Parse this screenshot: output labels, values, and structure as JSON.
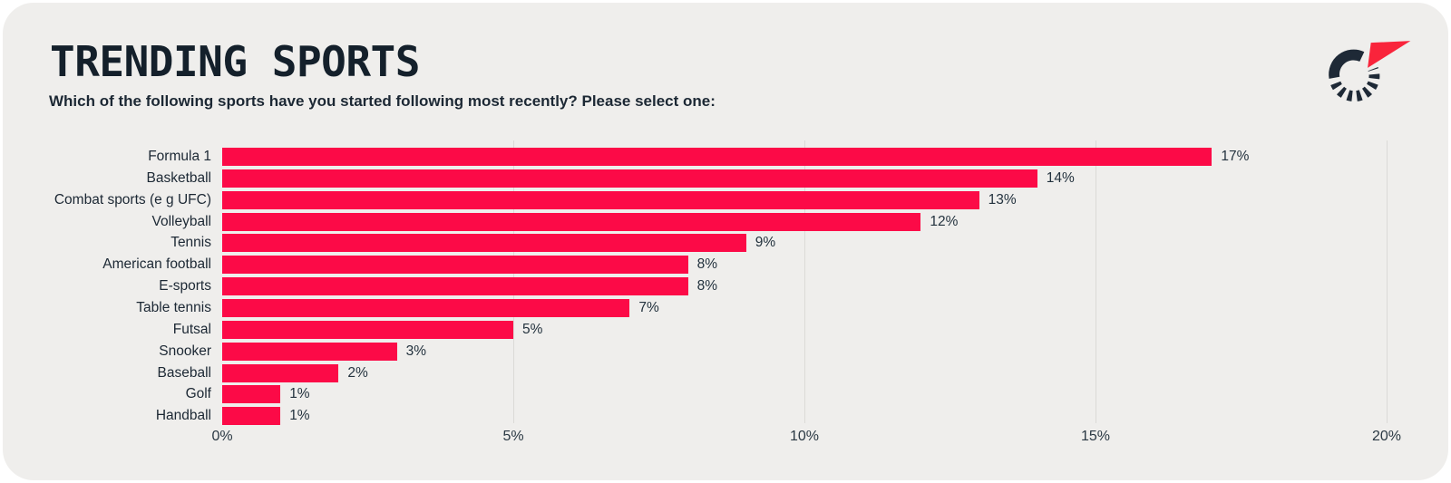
{
  "header": {
    "title": "TRENDING SPORTS",
    "subtitle": "Which of the following sports have you started following most recently? Please select one:"
  },
  "logo": {
    "ring_color": "#1e2936",
    "flag_color": "#f9243b"
  },
  "chart_data": {
    "type": "bar",
    "orientation": "horizontal",
    "title": "TRENDING SPORTS",
    "xlabel": "",
    "ylabel": "",
    "categories": [
      "Formula 1",
      "Basketball",
      "Combat sports (e g UFC)",
      "Volleyball",
      "Tennis",
      "American football",
      "E-sports",
      "Table tennis",
      "Futsal",
      "Snooker",
      "Baseball",
      "Golf",
      "Handball"
    ],
    "values": [
      17,
      14,
      13,
      12,
      9,
      8,
      8,
      7,
      5,
      3,
      2,
      1,
      1
    ],
    "value_labels": [
      "17%",
      "14%",
      "13%",
      "12%",
      "9%",
      "8%",
      "8%",
      "7%",
      "5%",
      "3%",
      "2%",
      "1%",
      "1%"
    ],
    "xlim": [
      0,
      20
    ],
    "x_ticks": [
      0,
      5,
      10,
      15,
      20
    ],
    "x_tick_labels": [
      "0%",
      "5%",
      "10%",
      "15%",
      "20%"
    ],
    "grid": true,
    "legend": false,
    "bar_color": "#fc0a47",
    "gridline_color": "#dbdad7",
    "text_color": "#1c2834",
    "card_background": "#efeeec"
  }
}
